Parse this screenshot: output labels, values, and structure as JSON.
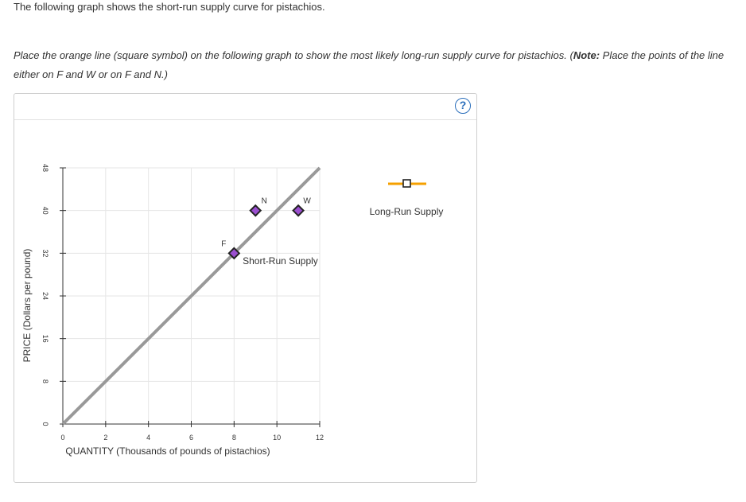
{
  "prompt": {
    "intro": "The following graph shows the short-run supply curve for pistachios.",
    "instruction_main": "Place the orange line (square symbol) on the following graph to show the most likely long-run supply curve for pistachios. (",
    "note_label": "Note:",
    "note_text": " Place the points of the line either on F and W or on F and N.)"
  },
  "help": {
    "symbol": "?"
  },
  "legend": {
    "label": "Long-Run Supply",
    "color": "#f5a000"
  },
  "colors": {
    "short_run_line": "#999999",
    "point_fill": "#9b4fd0",
    "point_stroke": "#222222",
    "grid": "#e6e6e6",
    "axis": "#333333"
  },
  "chart_data": {
    "type": "line",
    "xlabel": "QUANTITY (Thousands of pounds of pistachios)",
    "ylabel": "PRICE (Dollars per pound)",
    "xlim": [
      0,
      12
    ],
    "ylim": [
      0,
      48
    ],
    "x_ticks": [
      0,
      2,
      4,
      6,
      8,
      10,
      12
    ],
    "y_ticks": [
      0,
      8,
      16,
      24,
      32,
      40,
      48
    ],
    "grid": true,
    "series": [
      {
        "name": "Short-Run Supply",
        "x": [
          0,
          12
        ],
        "y": [
          0,
          48
        ]
      }
    ],
    "points": [
      {
        "label": "F",
        "x": 8,
        "y": 32
      },
      {
        "label": "N",
        "x": 9,
        "y": 40
      },
      {
        "label": "W",
        "x": 11,
        "y": 40
      }
    ]
  }
}
